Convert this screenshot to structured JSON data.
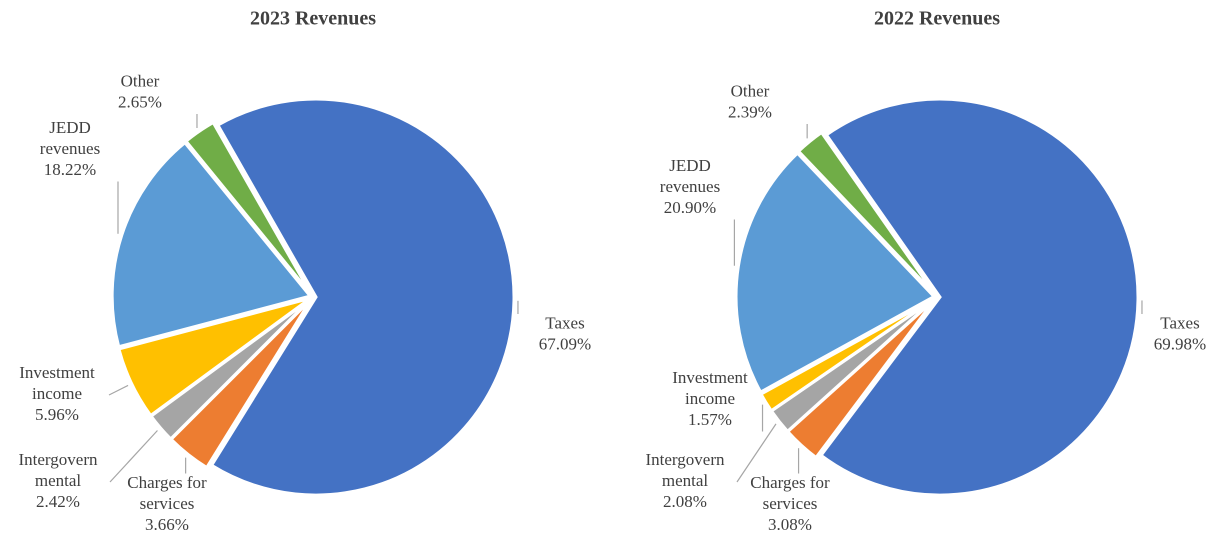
{
  "chart_data": [
    {
      "type": "pie",
      "title": "2023 Revenues",
      "categories": [
        "Taxes",
        "Charges for services",
        "Intergovernmental",
        "Investment income",
        "JEDD revenues",
        "Other"
      ],
      "values": [
        67.09,
        3.66,
        2.42,
        5.96,
        18.22,
        2.65
      ],
      "value_labels": [
        "67.09%",
        "3.66%",
        "2.42%",
        "5.96%",
        "18.22%",
        "2.65%"
      ],
      "colors": [
        "#4472c4",
        "#ed7d31",
        "#a5a5a5",
        "#ffc000",
        "#5b9bd5",
        "#70ad47"
      ]
    },
    {
      "type": "pie",
      "title": "2022 Revenues",
      "categories": [
        "Taxes",
        "Charges for services",
        "Intergovernmental",
        "Investment income",
        "JEDD revenues",
        "Other"
      ],
      "values": [
        69.98,
        3.08,
        2.08,
        1.57,
        20.9,
        2.39
      ],
      "value_labels": [
        "69.98%",
        "3.08%",
        "2.08%",
        "1.57%",
        "20.90%",
        "2.39%"
      ],
      "colors": [
        "#4472c4",
        "#ed7d31",
        "#a5a5a5",
        "#ffc000",
        "#5b9bd5",
        "#70ad47"
      ]
    }
  ]
}
